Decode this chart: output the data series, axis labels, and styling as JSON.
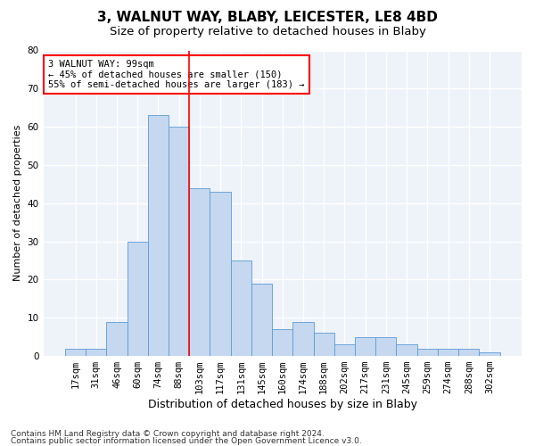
{
  "title1": "3, WALNUT WAY, BLABY, LEICESTER, LE8 4BD",
  "title2": "Size of property relative to detached houses in Blaby",
  "xlabel": "Distribution of detached houses by size in Blaby",
  "ylabel": "Number of detached properties",
  "categories": [
    "17sqm",
    "31sqm",
    "46sqm",
    "60sqm",
    "74sqm",
    "88sqm",
    "103sqm",
    "117sqm",
    "131sqm",
    "145sqm",
    "160sqm",
    "174sqm",
    "188sqm",
    "202sqm",
    "217sqm",
    "231sqm",
    "245sqm",
    "259sqm",
    "274sqm",
    "288sqm",
    "302sqm"
  ],
  "values": [
    2,
    2,
    9,
    30,
    63,
    60,
    44,
    43,
    25,
    19,
    7,
    9,
    6,
    3,
    5,
    5,
    3,
    2,
    2,
    2,
    1
  ],
  "bar_color": "#c5d8ef",
  "bar_edge_color": "#5b9bd5",
  "red_line_index": 6,
  "annotation_text1": "3 WALNUT WAY: 99sqm",
  "annotation_text2": "← 45% of detached houses are smaller (150)",
  "annotation_text3": "55% of semi-detached houses are larger (183) →",
  "annotation_box_color": "white",
  "annotation_box_edge_color": "red",
  "footer1": "Contains HM Land Registry data © Crown copyright and database right 2024.",
  "footer2": "Contains public sector information licensed under the Open Government Licence v3.0.",
  "ylim": [
    0,
    80
  ],
  "yticks": [
    0,
    10,
    20,
    30,
    40,
    50,
    60,
    70,
    80
  ],
  "background_color": "#eef2f9",
  "grid_color": "#ffffff",
  "title1_fontsize": 11,
  "title2_fontsize": 9.5,
  "xlabel_fontsize": 9,
  "ylabel_fontsize": 8,
  "tick_fontsize": 7.5,
  "footer_fontsize": 6.5,
  "annot_fontsize": 7.5
}
